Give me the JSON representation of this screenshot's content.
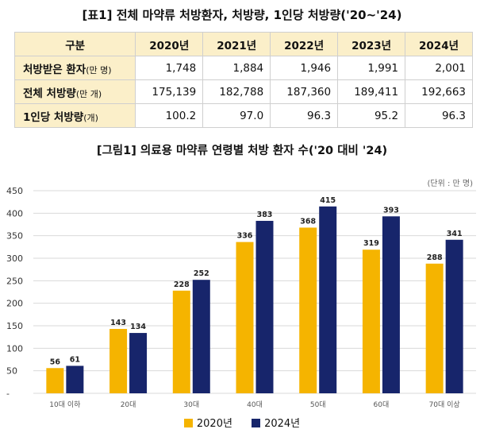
{
  "table_title": "[표1] 전체 마약류 처방환자, 처방량, 1인당 처방량('20~'24)",
  "table": {
    "header": [
      "구분",
      "2020년",
      "2021년",
      "2022년",
      "2023년",
      "2024년"
    ],
    "rows": [
      {
        "label": "처방받은 환자",
        "unit": "(만 명)",
        "values": [
          "1,748",
          "1,884",
          "1,946",
          "1,991",
          "2,001"
        ]
      },
      {
        "label": "전체 처방량",
        "unit": "(만 개)",
        "values": [
          "175,139",
          "182,788",
          "187,360",
          "189,411",
          "192,663"
        ]
      },
      {
        "label": "1인당 처방량",
        "unit": "(개)",
        "values": [
          "100.2",
          "97.0",
          "96.3",
          "95.2",
          "96.3"
        ]
      }
    ]
  },
  "chart_title": "[그림1] 의료용 마약류 연령별 처방 환자 수('20 대비 '24)",
  "unit_label": "(단위 : 만 명)",
  "colors": {
    "series2020": "#f5b400",
    "series2024": "#17256b",
    "header_bg": "#fbefc9"
  },
  "chart_data": {
    "type": "bar",
    "title": "[그림1] 의료용 마약류 연령별 처방 환자 수('20 대비 '24)",
    "categories": [
      "10대 이하",
      "20대",
      "30대",
      "40대",
      "50대",
      "60대",
      "70대 이상"
    ],
    "series": [
      {
        "name": "2020년",
        "values": [
          56,
          143,
          228,
          336,
          368,
          319,
          288
        ]
      },
      {
        "name": "2024년",
        "values": [
          61,
          134,
          252,
          383,
          415,
          393,
          341
        ]
      }
    ],
    "ylim": [
      0,
      450
    ],
    "yticks": [
      "-",
      "50",
      "100",
      "150",
      "200",
      "250",
      "300",
      "350",
      "400",
      "450"
    ],
    "xlabel": "",
    "ylabel": "",
    "grid": true,
    "legend": "bottom"
  }
}
